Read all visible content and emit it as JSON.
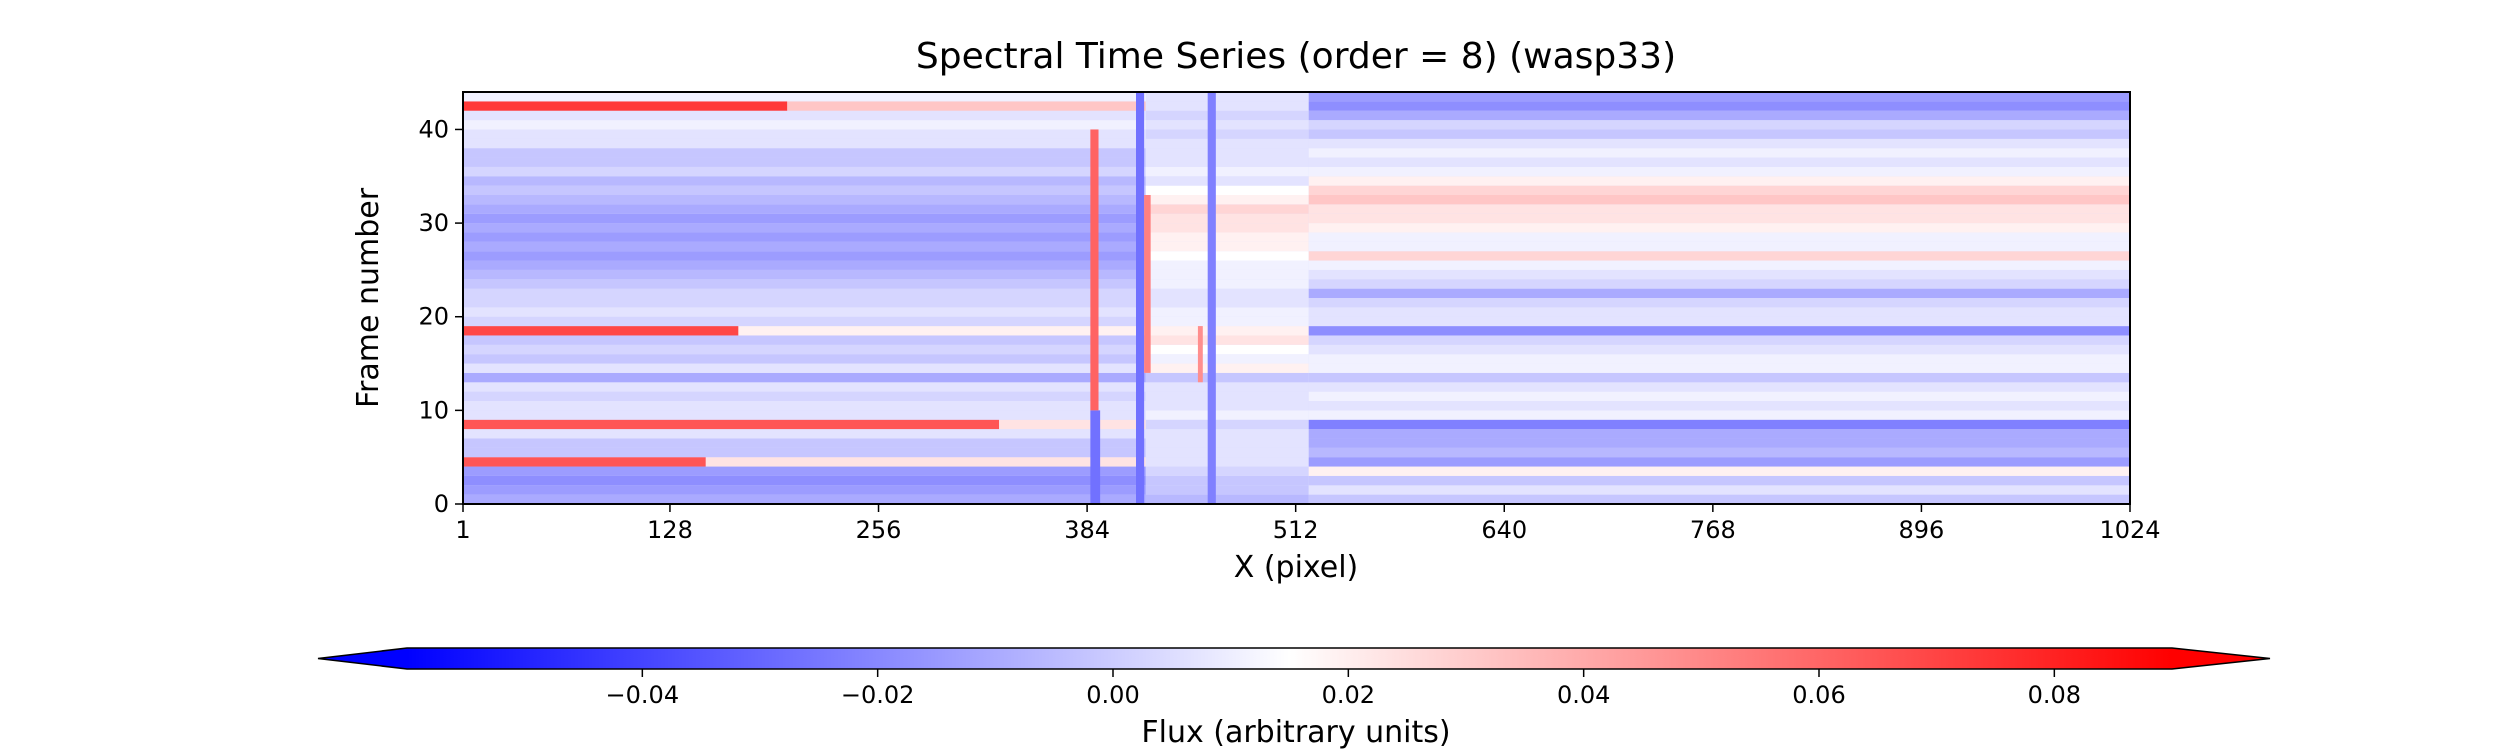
{
  "chart_data": {
    "type": "heatmap",
    "title": "Spectral Time Series (order = 8) (wasp33)",
    "xlabel": "X (pixel)",
    "ylabel": "Frame number",
    "xlim": [
      1,
      1024
    ],
    "ylim": [
      0,
      44
    ],
    "x_ticks": [
      1,
      128,
      256,
      384,
      512,
      640,
      768,
      896,
      1024
    ],
    "y_ticks": [
      0,
      10,
      20,
      30,
      40
    ],
    "n_frames": 44,
    "colormap": "bwr",
    "colorbar": {
      "label": "Flux (arbitrary units)",
      "vmin": -0.06,
      "vmax": 0.09,
      "extend": "both",
      "ticks": [
        -0.04,
        -0.02,
        0.0,
        0.02,
        0.04,
        0.06,
        0.08
      ],
      "tick_labels": [
        "−0.04",
        "−0.02",
        "0.00",
        "0.02",
        "0.04",
        "0.06",
        "0.08"
      ]
    },
    "frame_profiles": [
      {
        "frame": 0,
        "segments": [
          [
            1,
            420,
            -0.03
          ],
          [
            420,
            520,
            -0.025
          ],
          [
            520,
            1024,
            -0.02
          ]
        ]
      },
      {
        "frame": 1,
        "segments": [
          [
            1,
            420,
            -0.035
          ],
          [
            420,
            520,
            -0.02
          ],
          [
            520,
            1024,
            -0.01
          ]
        ]
      },
      {
        "frame": 2,
        "segments": [
          [
            1,
            420,
            -0.04
          ],
          [
            420,
            520,
            -0.02
          ],
          [
            520,
            1024,
            -0.02
          ]
        ]
      },
      {
        "frame": 3,
        "segments": [
          [
            1,
            420,
            -0.035
          ],
          [
            420,
            520,
            -0.015
          ],
          [
            520,
            1024,
            0.005
          ]
        ]
      },
      {
        "frame": 4,
        "segments": [
          [
            1,
            150,
            0.06
          ],
          [
            150,
            420,
            0.01
          ],
          [
            420,
            520,
            -0.01
          ],
          [
            520,
            1024,
            -0.035
          ]
        ]
      },
      {
        "frame": 5,
        "segments": [
          [
            1,
            420,
            -0.02
          ],
          [
            420,
            520,
            -0.01
          ],
          [
            520,
            1024,
            -0.025
          ]
        ]
      },
      {
        "frame": 6,
        "segments": [
          [
            1,
            420,
            -0.02
          ],
          [
            420,
            520,
            -0.01
          ],
          [
            520,
            1024,
            -0.03
          ]
        ]
      },
      {
        "frame": 7,
        "segments": [
          [
            1,
            420,
            -0.01
          ],
          [
            420,
            520,
            -0.01
          ],
          [
            520,
            1024,
            -0.03
          ]
        ]
      },
      {
        "frame": 8,
        "segments": [
          [
            1,
            330,
            0.06
          ],
          [
            330,
            420,
            0.01
          ],
          [
            420,
            520,
            -0.015
          ],
          [
            520,
            1024,
            -0.045
          ]
        ]
      },
      {
        "frame": 9,
        "segments": [
          [
            1,
            420,
            -0.01
          ],
          [
            420,
            520,
            -0.005
          ],
          [
            520,
            1024,
            -0.005
          ]
        ]
      },
      {
        "frame": 10,
        "segments": [
          [
            1,
            420,
            -0.01
          ],
          [
            420,
            520,
            -0.01
          ],
          [
            520,
            1024,
            -0.01
          ]
        ]
      },
      {
        "frame": 11,
        "segments": [
          [
            1,
            420,
            -0.015
          ],
          [
            420,
            520,
            -0.01
          ],
          [
            520,
            1024,
            -0.005
          ]
        ]
      },
      {
        "frame": 12,
        "segments": [
          [
            1,
            420,
            -0.01
          ],
          [
            420,
            520,
            -0.01
          ],
          [
            520,
            1024,
            -0.01
          ]
        ]
      },
      {
        "frame": 13,
        "segments": [
          [
            1,
            420,
            -0.03
          ],
          [
            420,
            520,
            -0.02
          ],
          [
            520,
            1024,
            -0.02
          ]
        ]
      },
      {
        "frame": 14,
        "segments": [
          [
            1,
            420,
            -0.01
          ],
          [
            420,
            520,
            0.005
          ],
          [
            520,
            1024,
            -0.005
          ]
        ]
      },
      {
        "frame": 15,
        "segments": [
          [
            1,
            420,
            -0.02
          ],
          [
            420,
            520,
            -0.005
          ],
          [
            520,
            1024,
            -0.005
          ]
        ]
      },
      {
        "frame": 16,
        "segments": [
          [
            1,
            420,
            -0.015
          ],
          [
            420,
            520,
            0.0
          ],
          [
            520,
            1024,
            -0.01
          ]
        ]
      },
      {
        "frame": 17,
        "segments": [
          [
            1,
            420,
            -0.02
          ],
          [
            420,
            520,
            0.01
          ],
          [
            520,
            1024,
            -0.015
          ]
        ]
      },
      {
        "frame": 18,
        "segments": [
          [
            1,
            170,
            0.065
          ],
          [
            170,
            420,
            0.005
          ],
          [
            420,
            520,
            0.005
          ],
          [
            520,
            1024,
            -0.04
          ]
        ]
      },
      {
        "frame": 19,
        "segments": [
          [
            1,
            420,
            -0.015
          ],
          [
            420,
            520,
            -0.005
          ],
          [
            520,
            1024,
            -0.01
          ]
        ]
      },
      {
        "frame": 20,
        "segments": [
          [
            1,
            420,
            -0.01
          ],
          [
            420,
            520,
            -0.005
          ],
          [
            520,
            1024,
            -0.01
          ]
        ]
      },
      {
        "frame": 21,
        "segments": [
          [
            1,
            420,
            -0.015
          ],
          [
            420,
            520,
            -0.01
          ],
          [
            520,
            1024,
            -0.015
          ]
        ]
      },
      {
        "frame": 22,
        "segments": [
          [
            1,
            420,
            -0.015
          ],
          [
            420,
            520,
            -0.01
          ],
          [
            520,
            1024,
            -0.03
          ]
        ]
      },
      {
        "frame": 23,
        "segments": [
          [
            1,
            420,
            -0.02
          ],
          [
            420,
            520,
            -0.005
          ],
          [
            520,
            1024,
            -0.015
          ]
        ]
      },
      {
        "frame": 24,
        "segments": [
          [
            1,
            420,
            -0.025
          ],
          [
            420,
            520,
            -0.005
          ],
          [
            520,
            1024,
            -0.01
          ]
        ]
      },
      {
        "frame": 25,
        "segments": [
          [
            1,
            420,
            -0.03
          ],
          [
            420,
            520,
            -0.005
          ],
          [
            520,
            1024,
            -0.005
          ]
        ]
      },
      {
        "frame": 26,
        "segments": [
          [
            1,
            420,
            -0.035
          ],
          [
            420,
            520,
            0.0
          ],
          [
            520,
            1024,
            0.015
          ]
        ]
      },
      {
        "frame": 27,
        "segments": [
          [
            1,
            420,
            -0.03
          ],
          [
            420,
            520,
            0.005
          ],
          [
            520,
            1024,
            -0.005
          ]
        ]
      },
      {
        "frame": 28,
        "segments": [
          [
            1,
            420,
            -0.035
          ],
          [
            420,
            520,
            0.005
          ],
          [
            520,
            1024,
            -0.005
          ]
        ]
      },
      {
        "frame": 29,
        "segments": [
          [
            1,
            420,
            -0.03
          ],
          [
            420,
            520,
            0.01
          ],
          [
            520,
            1024,
            0.005
          ]
        ]
      },
      {
        "frame": 30,
        "segments": [
          [
            1,
            420,
            -0.035
          ],
          [
            420,
            520,
            0.01
          ],
          [
            520,
            1024,
            0.01
          ]
        ]
      },
      {
        "frame": 31,
        "segments": [
          [
            1,
            420,
            -0.03
          ],
          [
            420,
            520,
            0.015
          ],
          [
            520,
            1024,
            0.01
          ]
        ]
      },
      {
        "frame": 32,
        "segments": [
          [
            1,
            420,
            -0.025
          ],
          [
            420,
            520,
            0.005
          ],
          [
            520,
            1024,
            0.02
          ]
        ]
      },
      {
        "frame": 33,
        "segments": [
          [
            1,
            420,
            -0.02
          ],
          [
            420,
            520,
            0.0
          ],
          [
            520,
            1024,
            0.015
          ]
        ]
      },
      {
        "frame": 34,
        "segments": [
          [
            1,
            420,
            -0.025
          ],
          [
            420,
            520,
            -0.01
          ],
          [
            520,
            1024,
            0.005
          ]
        ]
      },
      {
        "frame": 35,
        "segments": [
          [
            1,
            420,
            -0.015
          ],
          [
            420,
            520,
            -0.005
          ],
          [
            520,
            1024,
            -0.005
          ]
        ]
      },
      {
        "frame": 36,
        "segments": [
          [
            1,
            420,
            -0.02
          ],
          [
            420,
            520,
            -0.01
          ],
          [
            520,
            1024,
            -0.01
          ]
        ]
      },
      {
        "frame": 37,
        "segments": [
          [
            1,
            420,
            -0.02
          ],
          [
            420,
            520,
            -0.01
          ],
          [
            520,
            1024,
            -0.005
          ]
        ]
      },
      {
        "frame": 38,
        "segments": [
          [
            1,
            420,
            -0.01
          ],
          [
            420,
            520,
            -0.01
          ],
          [
            520,
            1024,
            -0.01
          ]
        ]
      },
      {
        "frame": 39,
        "segments": [
          [
            1,
            420,
            -0.01
          ],
          [
            420,
            520,
            -0.015
          ],
          [
            520,
            1024,
            -0.02
          ]
        ]
      },
      {
        "frame": 40,
        "segments": [
          [
            1,
            420,
            -0.005
          ],
          [
            420,
            520,
            -0.01
          ],
          [
            520,
            1024,
            -0.015
          ]
        ]
      },
      {
        "frame": 41,
        "segments": [
          [
            1,
            420,
            -0.01
          ],
          [
            420,
            520,
            -0.015
          ],
          [
            520,
            1024,
            -0.03
          ]
        ]
      },
      {
        "frame": 42,
        "segments": [
          [
            1,
            200,
            0.07
          ],
          [
            200,
            420,
            0.02
          ],
          [
            420,
            520,
            -0.01
          ],
          [
            520,
            1024,
            -0.04
          ]
        ]
      },
      {
        "frame": 43,
        "segments": [
          [
            1,
            420,
            -0.005
          ],
          [
            420,
            520,
            -0.01
          ],
          [
            520,
            1024,
            -0.035
          ]
        ]
      }
    ],
    "vertical_features": [
      {
        "x": 386,
        "width": 6,
        "value": -0.05,
        "frames": [
          0,
          10
        ]
      },
      {
        "x": 386,
        "width": 5,
        "value": 0.055,
        "frames": [
          10,
          40
        ]
      },
      {
        "x": 414,
        "width": 5,
        "value": -0.05,
        "frames": [
          0,
          44
        ]
      },
      {
        "x": 419,
        "width": 4,
        "value": 0.045,
        "frames": [
          14,
          33
        ]
      },
      {
        "x": 458,
        "width": 5,
        "value": -0.045,
        "frames": [
          0,
          44
        ]
      },
      {
        "x": 452,
        "width": 3,
        "value": 0.04,
        "frames": [
          13,
          19
        ]
      }
    ]
  }
}
